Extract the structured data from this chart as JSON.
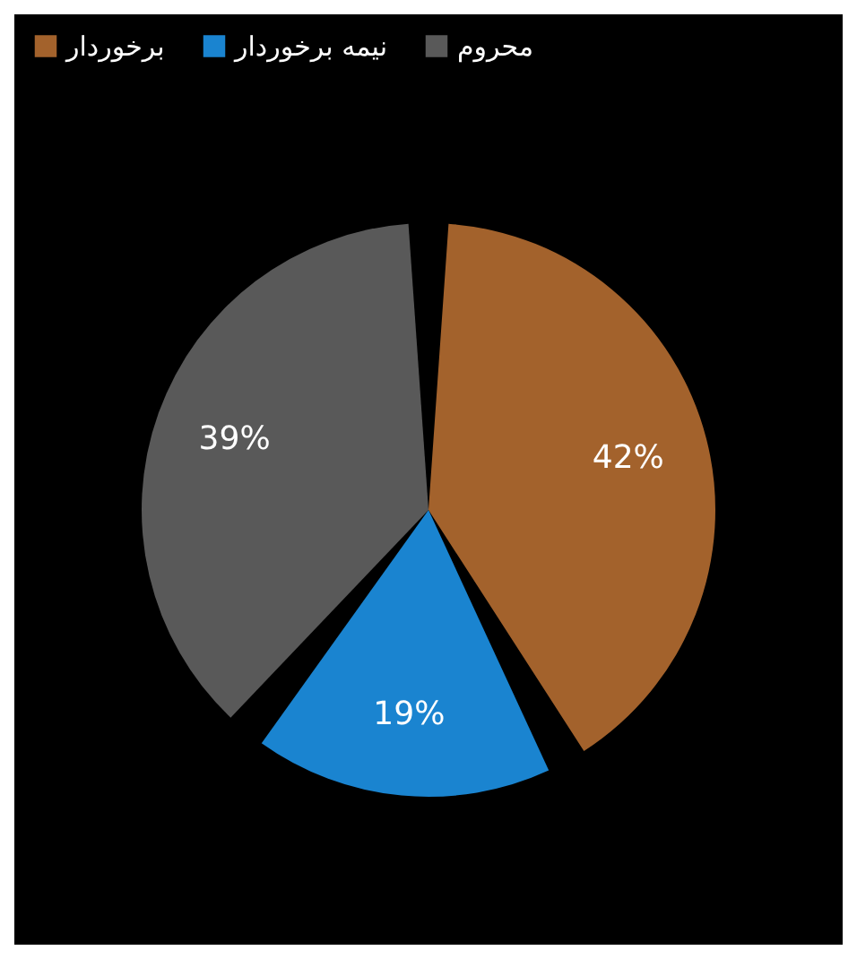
{
  "chart_data": {
    "type": "pie",
    "categories": [
      "برخوردار",
      "نیمه برخوردار",
      "محروم"
    ],
    "values": [
      42,
      19,
      39
    ],
    "colors": [
      "#a3622c",
      "#1a84d0",
      "#595959"
    ],
    "value_labels": [
      "42%",
      "19%",
      "39%"
    ],
    "legend": "top"
  }
}
